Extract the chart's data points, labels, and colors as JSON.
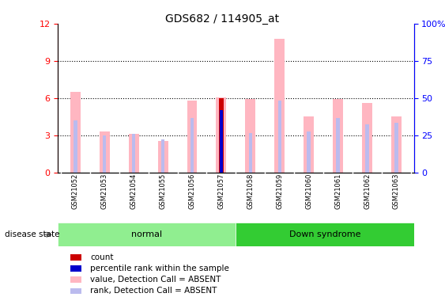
{
  "title": "GDS682 / 114905_at",
  "samples": [
    "GSM21052",
    "GSM21053",
    "GSM21054",
    "GSM21055",
    "GSM21056",
    "GSM21057",
    "GSM21058",
    "GSM21059",
    "GSM21060",
    "GSM21061",
    "GSM21062",
    "GSM21063"
  ],
  "groups": [
    "normal",
    "normal",
    "normal",
    "normal",
    "normal",
    "normal",
    "Down syndrome",
    "Down syndrome",
    "Down syndrome",
    "Down syndrome",
    "Down syndrome",
    "Down syndrome"
  ],
  "value_absent": [
    6.5,
    3.3,
    3.1,
    2.5,
    5.8,
    6.05,
    5.9,
    10.8,
    4.5,
    5.9,
    5.6,
    4.5
  ],
  "rank_absent": [
    4.2,
    3.0,
    3.1,
    2.65,
    4.4,
    4.9,
    3.2,
    5.8,
    3.3,
    4.4,
    3.9,
    4.0
  ],
  "count_val": 6.0,
  "count_idx": 5,
  "percentile_val": 5.0,
  "percentile_idx": 5,
  "ylim_left": [
    0,
    12
  ],
  "ylim_right": [
    0,
    100
  ],
  "yticks_left": [
    0,
    3,
    6,
    9,
    12
  ],
  "yticks_right": [
    0,
    25,
    50,
    75,
    100
  ],
  "color_value_absent": "#FFB6C1",
  "color_rank_absent": "#BBBBEE",
  "color_count": "#CC0000",
  "color_percentile": "#0000CC",
  "color_normal_bg": "#90EE90",
  "color_down_bg": "#33CC33",
  "color_label_bg": "#D3D3D3",
  "normal_label": "normal",
  "down_label": "Down syndrome",
  "disease_state_label": "disease state",
  "legend_items": [
    "count",
    "percentile rank within the sample",
    "value, Detection Call = ABSENT",
    "rank, Detection Call = ABSENT"
  ],
  "bar_width": 0.35,
  "rank_bar_width": 0.12,
  "count_bar_width": 0.18,
  "percentile_bar_width": 0.1
}
